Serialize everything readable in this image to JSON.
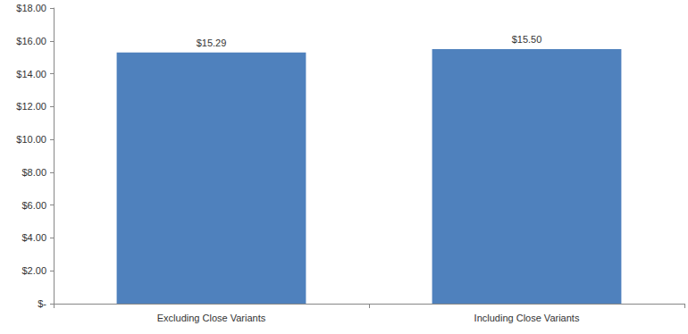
{
  "chart_data": {
    "type": "bar",
    "categories": [
      "Excluding Close Variants",
      "Including Close Variants"
    ],
    "values": [
      15.29,
      15.5
    ],
    "value_labels": [
      "$15.29",
      "$15.50"
    ],
    "color": "#4f81bd",
    "ylim": [
      0,
      18
    ],
    "yticks": [
      {
        "value": 0,
        "label": "$-"
      },
      {
        "value": 2,
        "label": "$2.00"
      },
      {
        "value": 4,
        "label": "$4.00"
      },
      {
        "value": 6,
        "label": "$6.00"
      },
      {
        "value": 8,
        "label": "$8.00"
      },
      {
        "value": 10,
        "label": "$10.00"
      },
      {
        "value": 12,
        "label": "$12.00"
      },
      {
        "value": 14,
        "label": "$14.00"
      },
      {
        "value": 16,
        "label": "$16.00"
      },
      {
        "value": 18,
        "label": "$18.00"
      }
    ],
    "grid": false,
    "data_labels": true
  }
}
